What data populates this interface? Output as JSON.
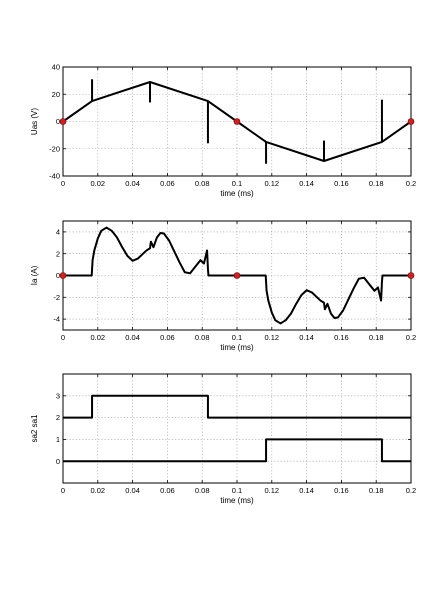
{
  "chart_data": [
    {
      "type": "line",
      "ylabel": "Uas (V)",
      "xlabel": "time (ms)",
      "xlim": [
        0,
        0.2
      ],
      "ylim": [
        -40,
        40
      ],
      "xticks": [
        "0",
        "0.02",
        "0.04",
        "0.06",
        "0.08",
        "0.1",
        "0.12",
        "0.14",
        "0.16",
        "0.18",
        "0.2"
      ],
      "yticks": [
        "40",
        "20",
        "0",
        "-20",
        "-40"
      ],
      "grid": true,
      "series": [
        {
          "x": [
            0,
            0.0167,
            0.05,
            0.0833,
            0.1,
            0.1167,
            0.15,
            0.1833,
            0.2
          ],
          "y": [
            0,
            15,
            29,
            15,
            0,
            -15,
            -29,
            -15,
            0
          ]
        }
      ],
      "spikes": [
        {
          "x": 0.0167,
          "y1": 15,
          "y2": 31
        },
        {
          "x": 0.05,
          "y1": 29,
          "y2": 14
        },
        {
          "x": 0.0833,
          "y1": 15,
          "y2": -16
        },
        {
          "x": 0.1167,
          "y1": -15,
          "y2": -31
        },
        {
          "x": 0.15,
          "y1": -29,
          "y2": -14
        },
        {
          "x": 0.1833,
          "y1": -15,
          "y2": 16
        }
      ],
      "markers": [
        {
          "x": 0,
          "y": 0
        },
        {
          "x": 0.1,
          "y": 0
        },
        {
          "x": 0.2,
          "y": 0
        }
      ]
    },
    {
      "type": "line",
      "ylabel": "Ia (A)",
      "xlabel": "time (ms)",
      "xlim": [
        0,
        0.2
      ],
      "ylim": [
        -5,
        5
      ],
      "xticks": [
        "0",
        "0.02",
        "0.04",
        "0.06",
        "0.08",
        "0.1",
        "0.12",
        "0.14",
        "0.16",
        "0.18",
        "0.2"
      ],
      "yticks": [
        "4",
        "2",
        "0",
        "-2",
        "-4"
      ],
      "grid": true,
      "series": [
        {
          "x": [
            0,
            0.0165,
            0.017,
            0.018,
            0.02,
            0.022,
            0.025,
            0.028,
            0.031,
            0.034,
            0.037,
            0.04,
            0.043,
            0.046,
            0.048,
            0.05,
            0.0505,
            0.052,
            0.054,
            0.056,
            0.058,
            0.061,
            0.064,
            0.067,
            0.07,
            0.073,
            0.076,
            0.079,
            0.081,
            0.0828,
            0.0833,
            0.0836,
            0.1,
            0.1165,
            0.117,
            0.118,
            0.12,
            0.122,
            0.125,
            0.128,
            0.131,
            0.134,
            0.137,
            0.14,
            0.143,
            0.146,
            0.148,
            0.15,
            0.1505,
            0.152,
            0.154,
            0.156,
            0.158,
            0.161,
            0.164,
            0.167,
            0.17,
            0.173,
            0.176,
            0.179,
            0.181,
            0.1828,
            0.1833,
            0.1836,
            0.2
          ],
          "y": [
            0,
            0,
            1.4,
            2.3,
            3.4,
            4.1,
            4.4,
            4.1,
            3.5,
            2.6,
            1.8,
            1.35,
            1.55,
            2.0,
            2.3,
            2.5,
            3.1,
            2.6,
            3.5,
            3.9,
            3.85,
            3.2,
            2.2,
            1.2,
            0.3,
            0.2,
            0.8,
            1.4,
            1.1,
            2.3,
            0.6,
            0,
            0,
            0,
            -1.4,
            -2.3,
            -3.4,
            -4.1,
            -4.4,
            -4.1,
            -3.5,
            -2.6,
            -1.8,
            -1.35,
            -1.55,
            -2.0,
            -2.3,
            -2.5,
            -3.1,
            -2.6,
            -3.5,
            -3.9,
            -3.85,
            -3.2,
            -2.2,
            -1.2,
            -0.3,
            -0.2,
            -0.8,
            -1.4,
            -1.1,
            -2.3,
            -0.6,
            0,
            0
          ]
        }
      ],
      "markers": [
        {
          "x": 0,
          "y": 0
        },
        {
          "x": 0.1,
          "y": 0
        },
        {
          "x": 0.2,
          "y": 0
        }
      ]
    },
    {
      "type": "line",
      "ylabel": "sa2     sa1",
      "xlabel": "time (ms)",
      "xlim": [
        0,
        0.2
      ],
      "ylim": [
        -1,
        4
      ],
      "xticks": [
        "0",
        "0.02",
        "0.04",
        "0.06",
        "0.08",
        "0.1",
        "0.12",
        "0.14",
        "0.16",
        "0.18",
        "0.2"
      ],
      "yticks": [
        "3",
        "2",
        "1",
        "0"
      ],
      "grid": true,
      "series": [
        {
          "name": "sa1",
          "x": [
            0,
            0.0167,
            0.0167,
            0.0833,
            0.0833,
            0.2
          ],
          "y": [
            2,
            2,
            3,
            3,
            2,
            2
          ]
        },
        {
          "name": "sa2",
          "x": [
            0,
            0.1167,
            0.1167,
            0.1833,
            0.1833,
            0.2
          ],
          "y": [
            0,
            0,
            1,
            1,
            0,
            0
          ]
        }
      ]
    }
  ]
}
